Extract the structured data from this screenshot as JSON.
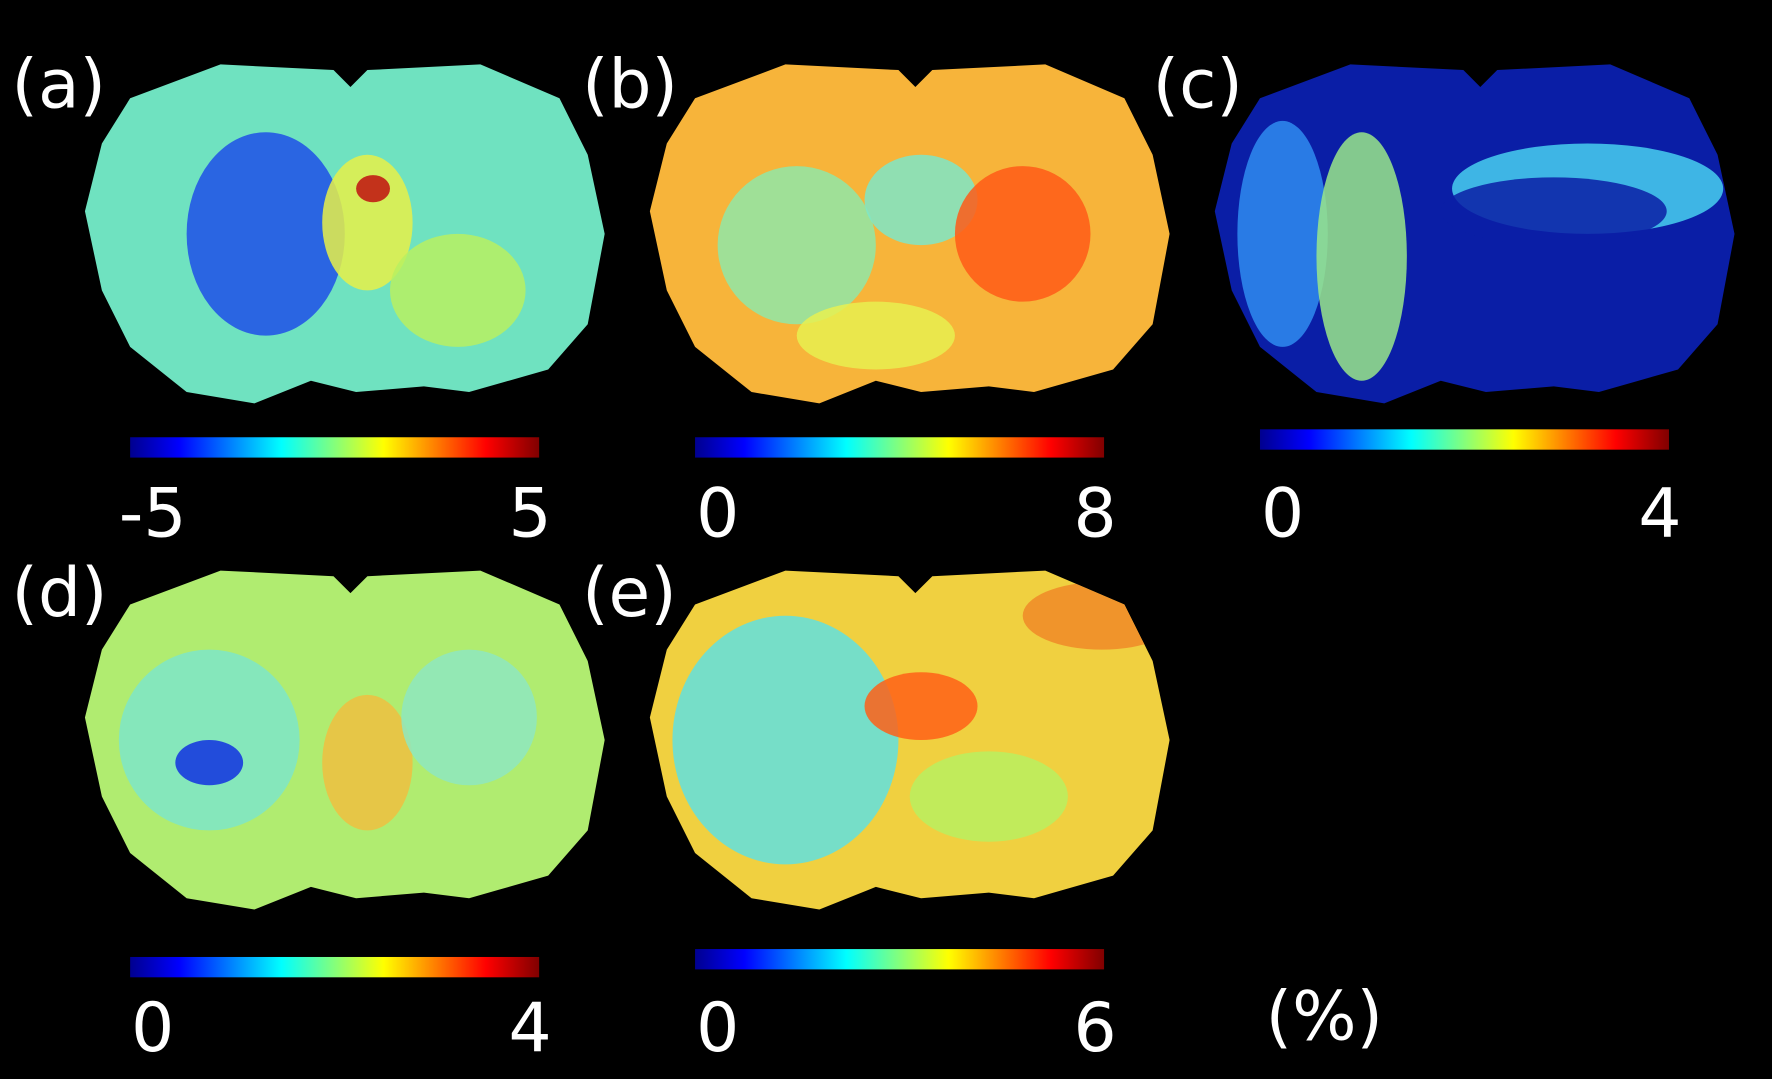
{
  "panels": [
    {
      "label": "(a)",
      "colorbar_min": -5,
      "colorbar_max": 5
    },
    {
      "label": "(b)",
      "colorbar_min": 0,
      "colorbar_max": 8
    },
    {
      "label": "(c)",
      "colorbar_min": 0,
      "colorbar_max": 4
    },
    {
      "label": "(d)",
      "colorbar_min": 0,
      "colorbar_max": 4
    },
    {
      "label": "(e)",
      "colorbar_min": 0,
      "colorbar_max": 6
    }
  ],
  "unit": "(%)"
}
